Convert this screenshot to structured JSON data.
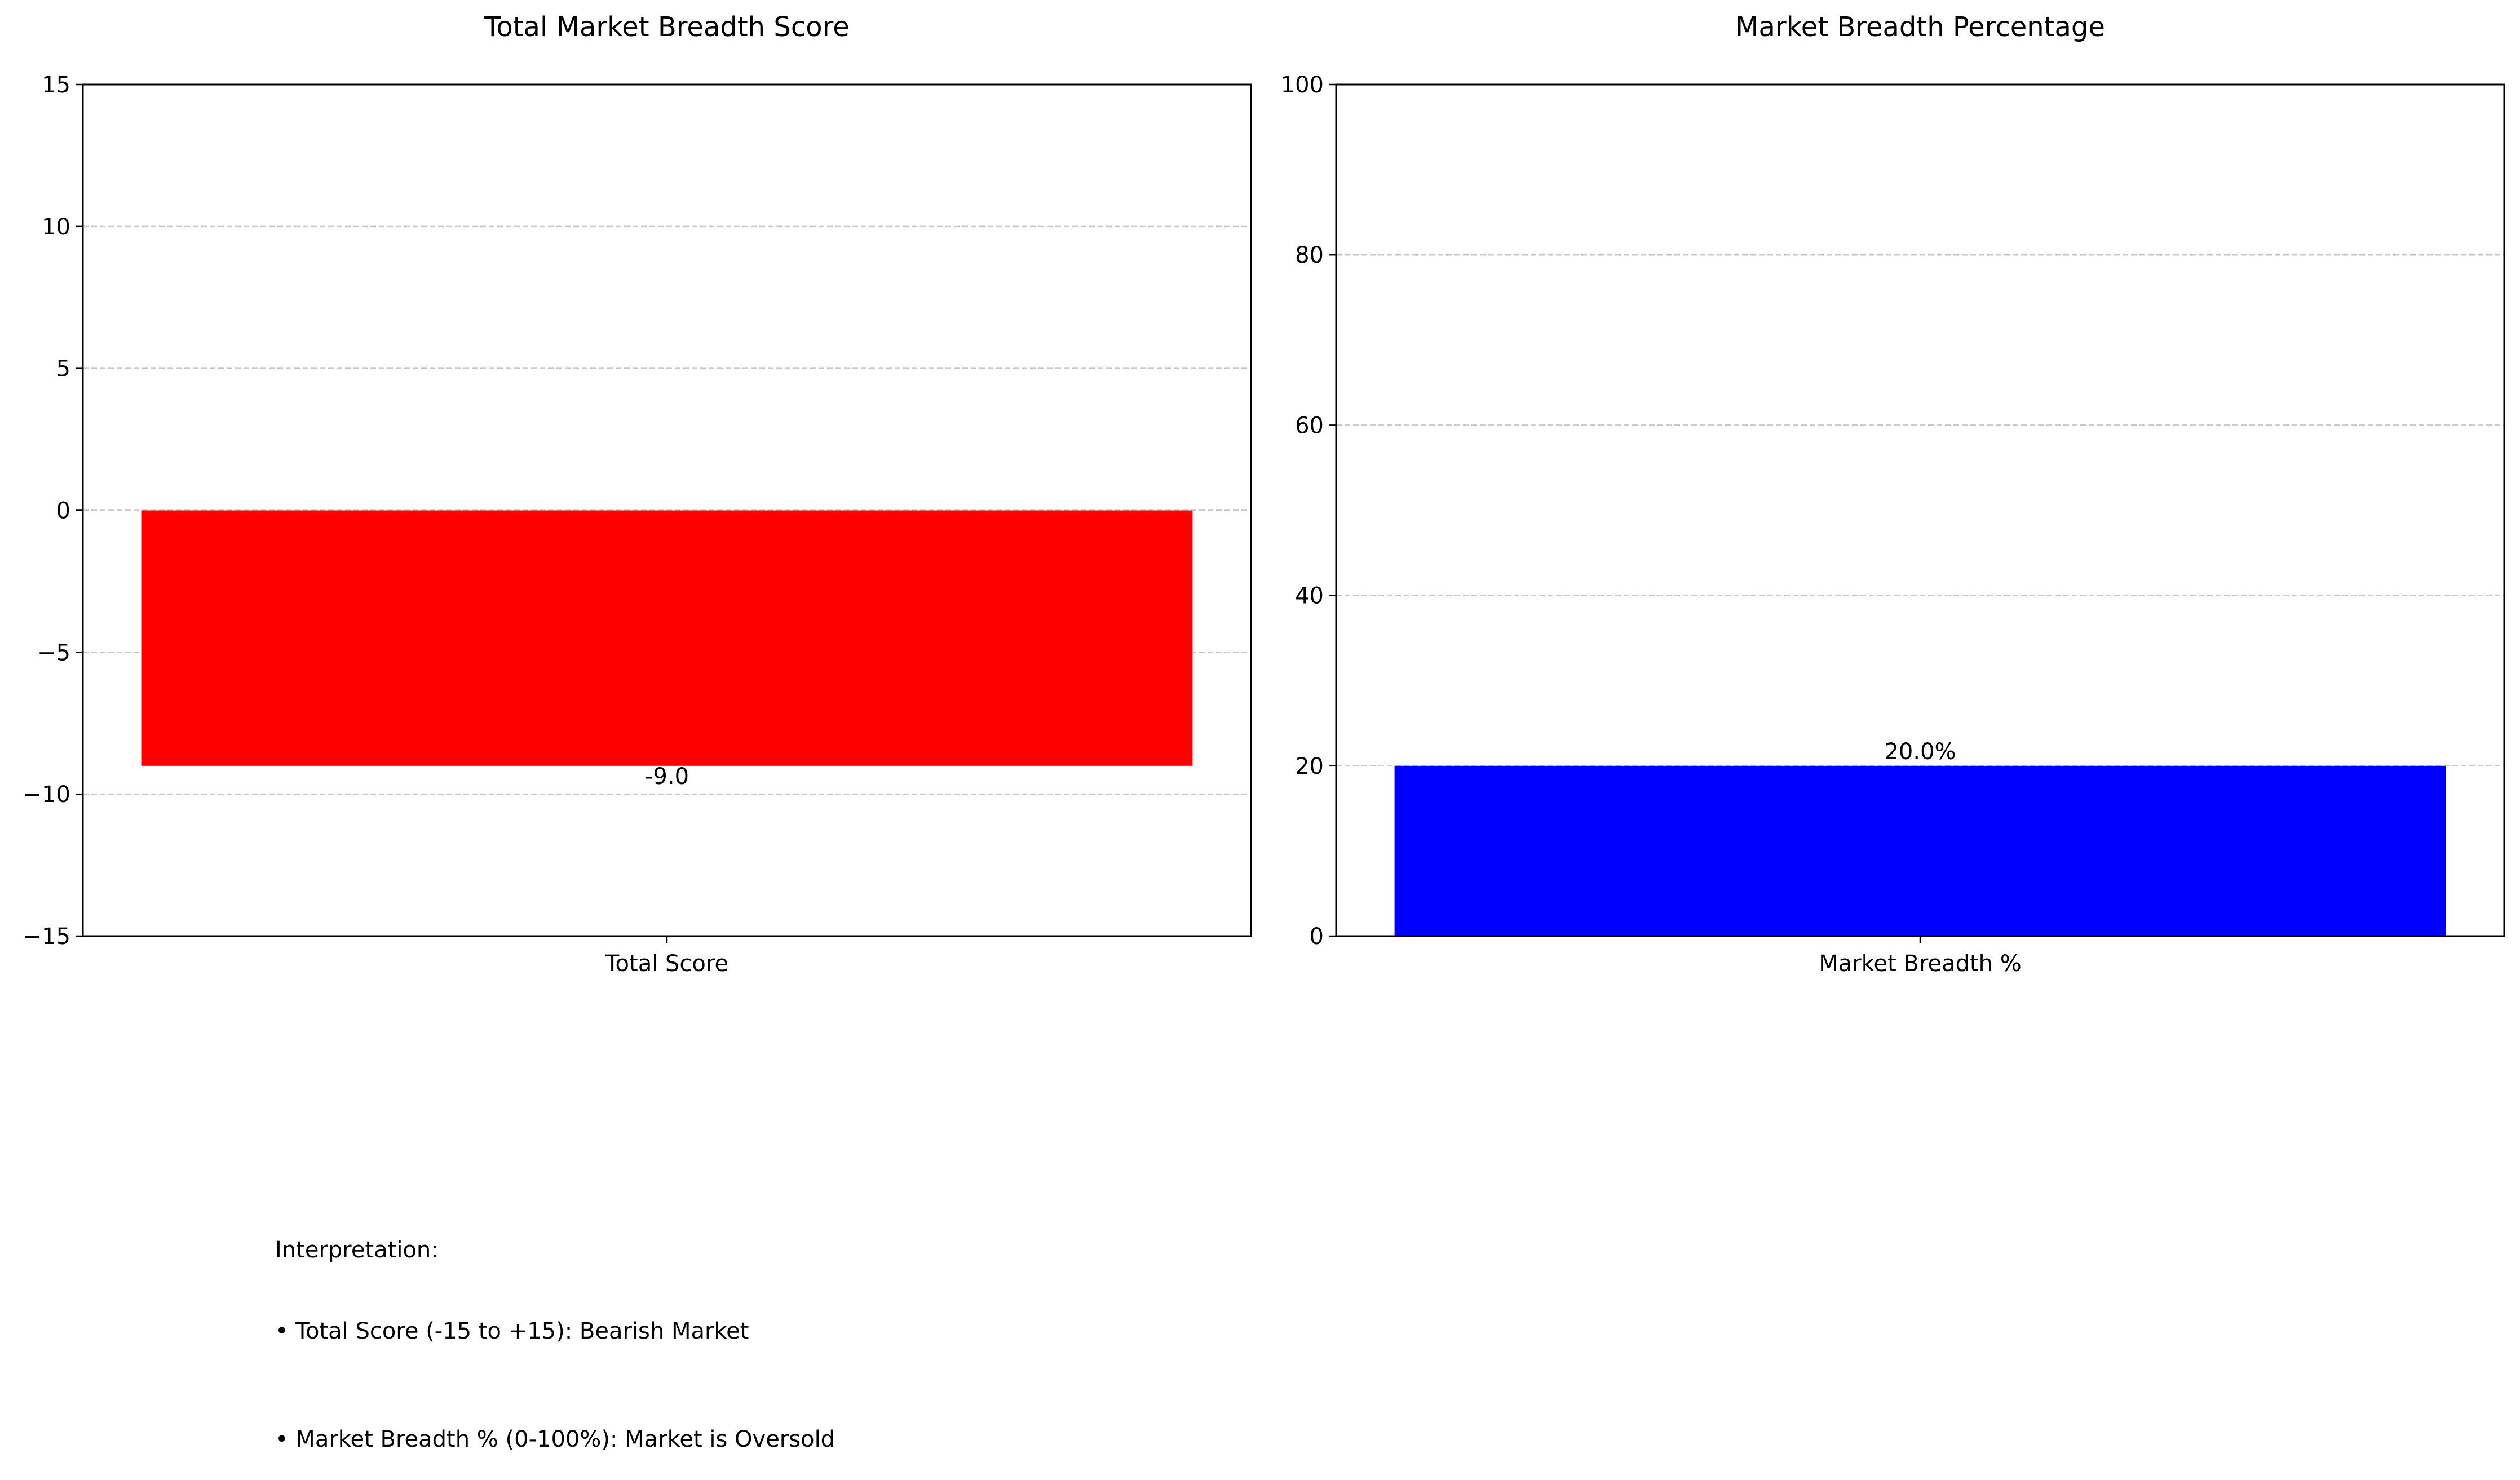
{
  "chart_data": [
    {
      "type": "bar",
      "title": "Total Market Breadth Score",
      "categories": [
        "Total Score"
      ],
      "values": [
        -9.0
      ],
      "value_labels": [
        "-9.0"
      ],
      "bar_color": "#ff0000",
      "ylim": [
        -15,
        15
      ],
      "yticks": [
        15,
        10,
        5,
        0,
        -5,
        -10,
        -15
      ],
      "ytick_labels": [
        "15",
        "10",
        "5",
        "0",
        "−5",
        "−10",
        "−15"
      ],
      "grid": "horizontal dashed",
      "legend": "none"
    },
    {
      "type": "bar",
      "title": "Market Breadth Percentage",
      "categories": [
        "Market Breadth %"
      ],
      "values": [
        20.0
      ],
      "value_labels": [
        "20.0%"
      ],
      "bar_color": "#0000ff",
      "ylim": [
        0,
        100
      ],
      "yticks": [
        100,
        80,
        60,
        40,
        20,
        0
      ],
      "ytick_labels": [
        "100",
        "80",
        "60",
        "40",
        "20",
        "0"
      ],
      "grid": "horizontal dashed",
      "legend": "none"
    }
  ],
  "interpretation": {
    "heading": "Interpretation:",
    "line1": "• Total Score (-15 to +15): Bearish Market",
    "line2": "• Market Breadth % (0-100%): Market is Oversold"
  },
  "colors": {
    "axis": "#000000",
    "grid": "#b0b0b0"
  }
}
